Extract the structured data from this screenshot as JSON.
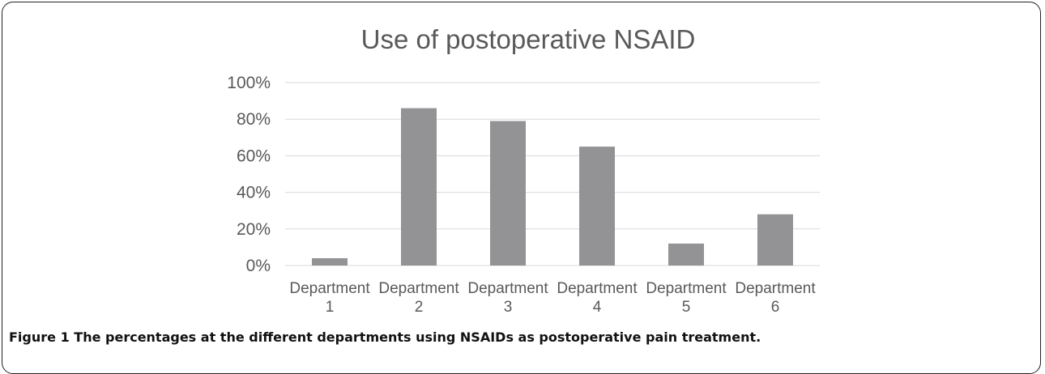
{
  "chart_data": {
    "type": "bar",
    "title": "Use of postoperative NSAID",
    "xlabel": "",
    "ylabel": "",
    "categories": [
      [
        "Department",
        "1"
      ],
      [
        "Department",
        "2"
      ],
      [
        "Department",
        "3"
      ],
      [
        "Department",
        "4"
      ],
      [
        "Department",
        "5"
      ],
      [
        "Department",
        "6"
      ]
    ],
    "values": [
      4,
      86,
      79,
      65,
      12,
      28
    ],
    "ylim": [
      0,
      100
    ],
    "yticks": [
      "0%",
      "20%",
      "40%",
      "60%",
      "80%",
      "100%"
    ],
    "grid": true,
    "legend": "none",
    "bar_color": "#939396",
    "grid_color": "#d9d9d9"
  },
  "caption": {
    "label": "Figure 1",
    "text": "The percentages at the different departments using NSAIDs as postoperative pain treatment."
  }
}
